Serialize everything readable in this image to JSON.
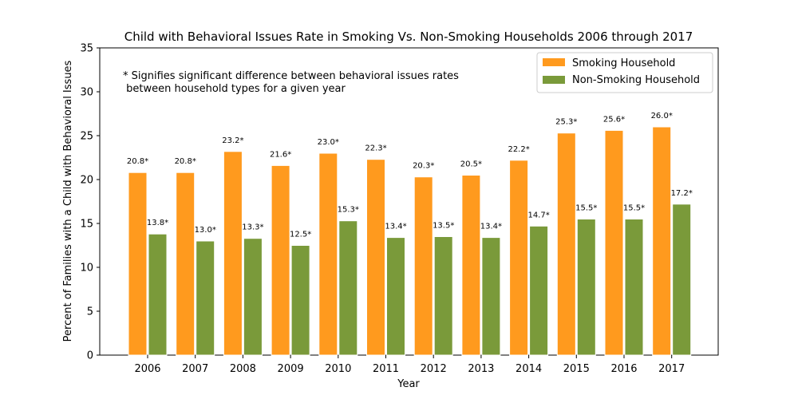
{
  "chart_data": {
    "type": "bar",
    "title": "Child with Behavioral Issues Rate in Smoking Vs. Non-Smoking Households 2006 through 2017",
    "xlabel": "Year",
    "ylabel": "Percent of Families with a Child with Behavioral Issues",
    "ylim": [
      0,
      35
    ],
    "yticks": [
      0,
      5,
      10,
      15,
      20,
      25,
      30,
      35
    ],
    "grid": false,
    "legend_position": "top-right",
    "categories": [
      "2006",
      "2007",
      "2008",
      "2009",
      "2010",
      "2011",
      "2012",
      "2013",
      "2014",
      "2015",
      "2016",
      "2017"
    ],
    "series": [
      {
        "name": "Smoking Household",
        "color": "#ff9a1e",
        "values": [
          20.8,
          20.8,
          23.2,
          21.6,
          23.0,
          22.3,
          20.3,
          20.5,
          22.2,
          25.3,
          25.6,
          26.0
        ],
        "labels": [
          "20.8*",
          "20.8*",
          "23.2*",
          "21.6*",
          "23.0*",
          "22.3*",
          "20.3*",
          "20.5*",
          "22.2*",
          "25.3*",
          "25.6*",
          "26.0*"
        ]
      },
      {
        "name": "Non-Smoking Household",
        "color": "#7a9a3a",
        "values": [
          13.8,
          13.0,
          13.3,
          12.5,
          15.3,
          13.4,
          13.5,
          13.4,
          14.7,
          15.5,
          15.5,
          17.2
        ],
        "labels": [
          "13.8*",
          "13.0*",
          "13.3*",
          "12.5*",
          "15.3*",
          "13.4*",
          "13.5*",
          "13.4*",
          "14.7*",
          "15.5*",
          "15.5*",
          "17.2*"
        ]
      }
    ],
    "annotation": [
      "* Signifies significant difference between behavioral issues rates",
      " between household types for a given year"
    ]
  }
}
